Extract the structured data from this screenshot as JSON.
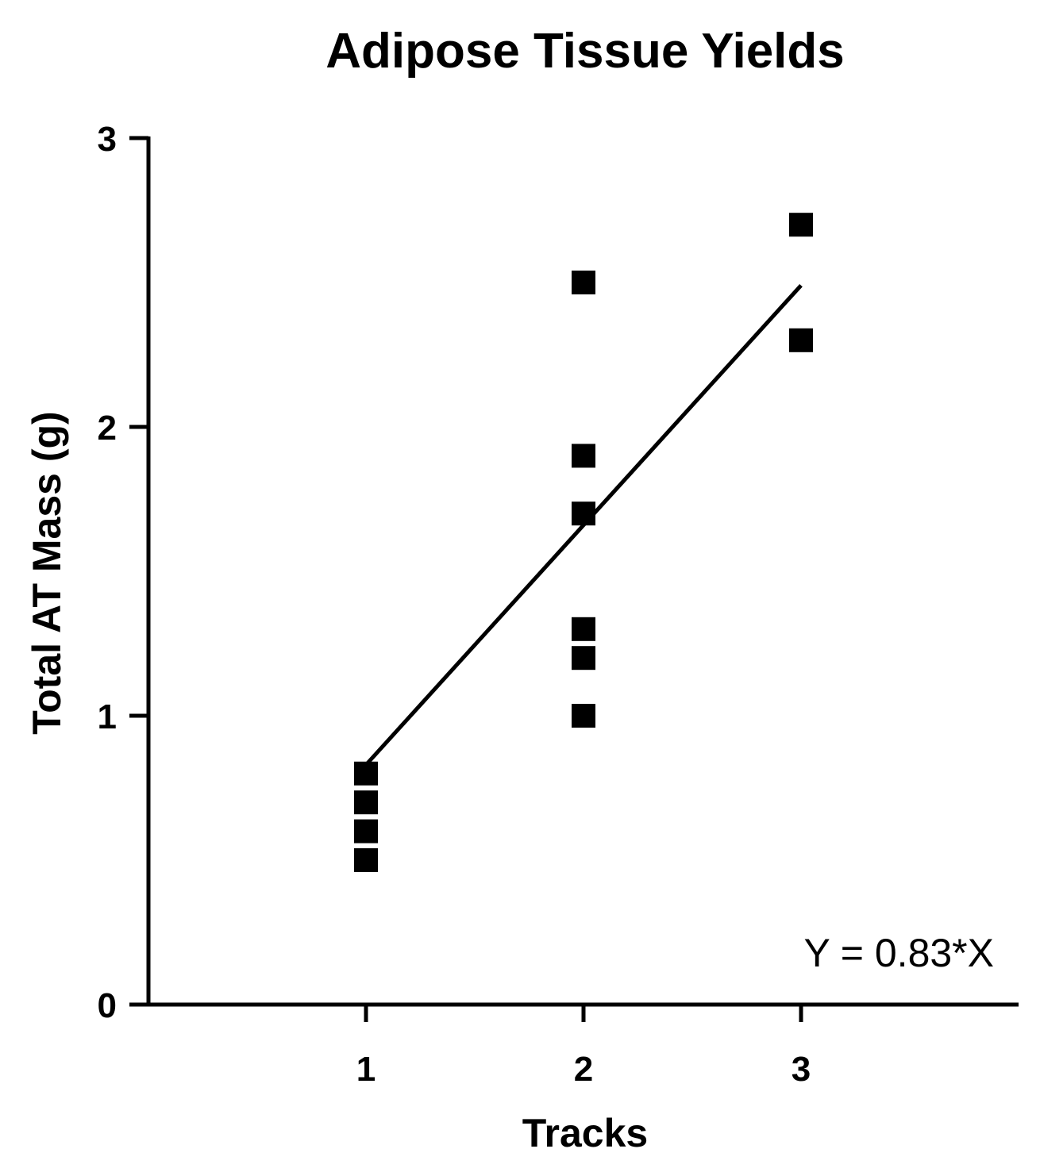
{
  "chart_data": {
    "type": "scatter",
    "title": "Adipose Tissue Yields",
    "xlabel": "Tracks",
    "ylabel": "Total AT Mass (g)",
    "x_ticks": [
      "1",
      "2",
      "3"
    ],
    "y_ticks": [
      "0",
      "1",
      "2",
      "3"
    ],
    "xlim": [
      0,
      4
    ],
    "ylim": [
      0,
      3
    ],
    "grid": false,
    "legend": "none",
    "marker": "square",
    "marker_color": "#000000",
    "points": [
      {
        "x": 1,
        "y": 0.8
      },
      {
        "x": 1,
        "y": 0.7
      },
      {
        "x": 1,
        "y": 0.6
      },
      {
        "x": 1,
        "y": 0.5
      },
      {
        "x": 2,
        "y": 2.5
      },
      {
        "x": 2,
        "y": 1.9
      },
      {
        "x": 2,
        "y": 1.7
      },
      {
        "x": 2,
        "y": 1.3
      },
      {
        "x": 2,
        "y": 1.2
      },
      {
        "x": 2,
        "y": 1.0
      },
      {
        "x": 3,
        "y": 2.7
      },
      {
        "x": 3,
        "y": 2.3
      }
    ],
    "fit_line": {
      "slope": 0.83,
      "x_range": [
        1,
        3
      ]
    },
    "annotation": "Y = 0.83*X"
  }
}
